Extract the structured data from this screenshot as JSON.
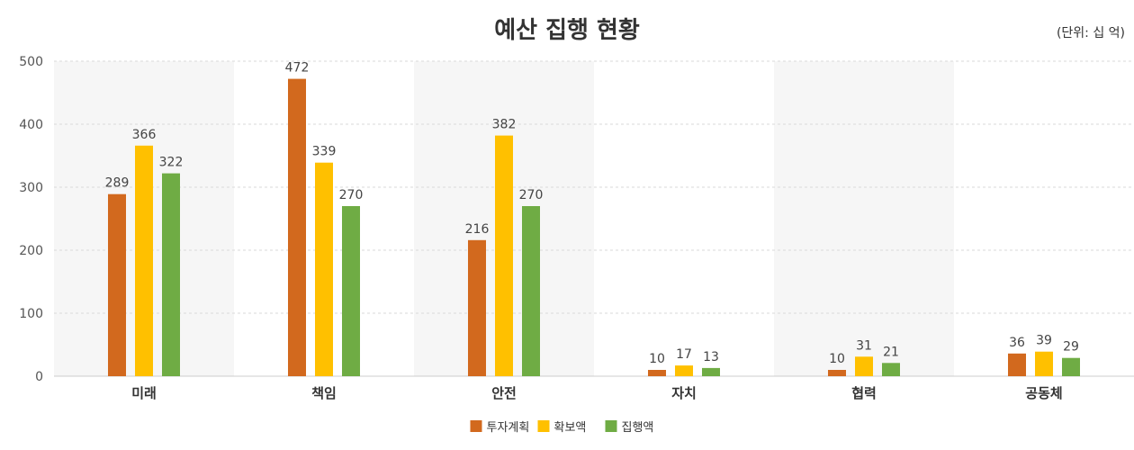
{
  "chart_data": {
    "type": "bar",
    "title": "예산 집행 현황",
    "unit_label": "(단위: 십 억)",
    "categories": [
      "미래",
      "책임",
      "안전",
      "자치",
      "협력",
      "공동체"
    ],
    "series": [
      {
        "name": "투자계획",
        "color": "#D2691E",
        "values": [
          289,
          472,
          216,
          10,
          10,
          36
        ]
      },
      {
        "name": "확보액",
        "color": "#FFC000",
        "values": [
          366,
          339,
          382,
          17,
          31,
          39
        ]
      },
      {
        "name": "집행액",
        "color": "#6FAC44",
        "values": [
          322,
          270,
          270,
          13,
          21,
          29
        ]
      }
    ],
    "ylim": [
      0,
      500
    ],
    "yticks": [
      0,
      100,
      200,
      300,
      400,
      500
    ],
    "grid": true,
    "legend_position": "bottom-center"
  }
}
